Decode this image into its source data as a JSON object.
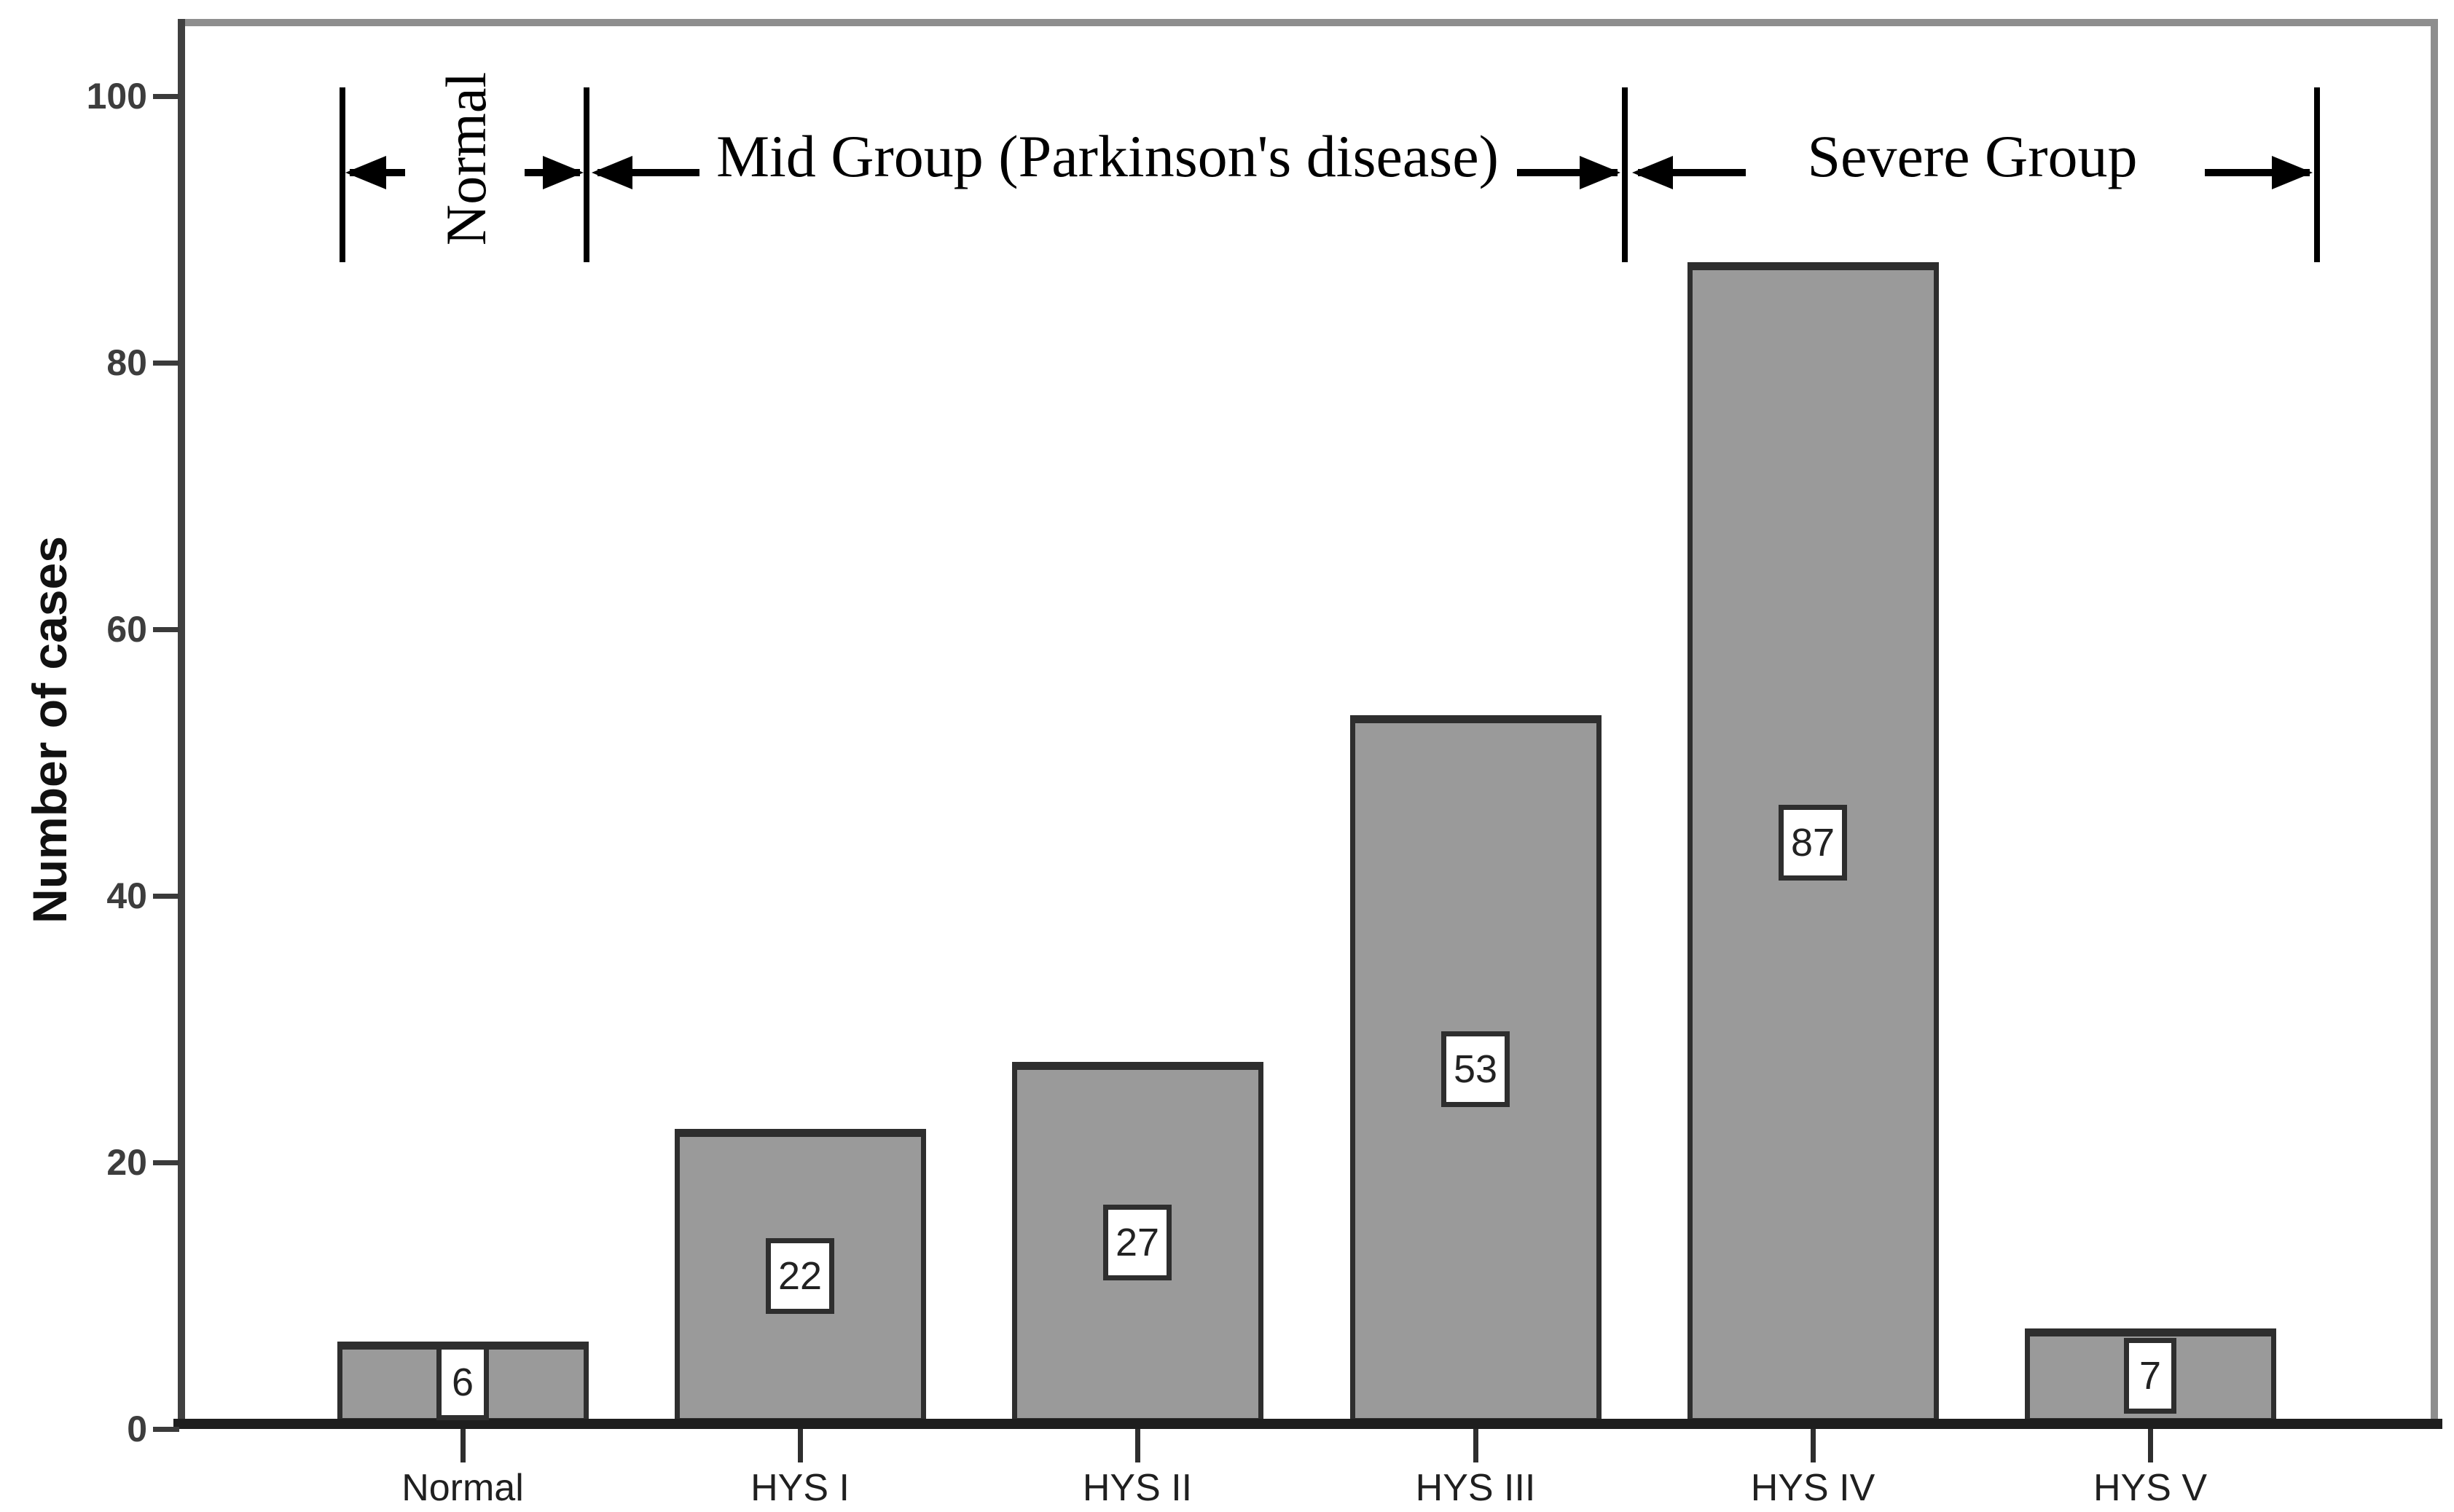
{
  "chart_data": {
    "type": "bar",
    "title": "",
    "categories": [
      "Normal",
      "HYS I",
      "HYS II",
      "HYS III",
      "HYS IV",
      "HYS V"
    ],
    "values": [
      6,
      22,
      27,
      53,
      87,
      7
    ],
    "bar_value_labels": [
      "6",
      "22",
      "27",
      "53",
      "87",
      "7"
    ],
    "xlabel": "",
    "ylabel": "Number of cases",
    "yticks": [
      "100",
      "80",
      "60",
      "40",
      "20",
      "0"
    ],
    "ylim": [
      0,
      105
    ],
    "grid": false,
    "legend": null,
    "bar_color": "#9a9a9a",
    "bar_border_color": "#2e2e2e",
    "value_label_box": {
      "background": "#ffffff",
      "border": "#2e2e2e"
    }
  },
  "annotations": {
    "normal_group": "Normal",
    "mid_group": "Mid Group (Parkinson's disease)",
    "severe_group": "Severe Group"
  },
  "colors": {
    "background": "#ffffff",
    "frame": "#8e8e8e",
    "y_axis": "#404040",
    "x_axis": "#1e1e1e",
    "tick_label": "#3d3d3d",
    "category_label": "#1f1f1f",
    "annotation": "#000000"
  }
}
